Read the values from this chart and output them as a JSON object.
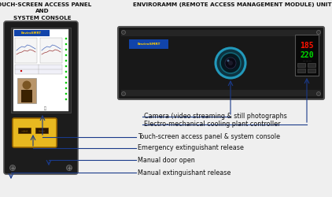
{
  "bg_color": "#efefef",
  "title_left": "TOUCH-SCREEN ACCESS PANEL\nAND\nSYSTEM CONSOLE",
  "title_right": "ENVIRORAMM (REMOTE ACCESS MANAGEMENT MODULE) UNIT",
  "labels": [
    "Camera (video streaming & still photographs",
    "Electro-mechanical cooling plant controller",
    "Touch-screen access panel & system console",
    "Emergency extinguishant release",
    "Manual door open",
    "Manual extinguishant release"
  ],
  "arrow_color": "#1a3a8a",
  "panel_bg": "#1c1c1c",
  "screen_bg": "#ffffff",
  "unit_bg": "#181818",
  "camera_ring": "#2299bb",
  "display_red": "#ff1100",
  "display_green": "#00dd00",
  "btn_yellow": "#e8b820",
  "font_size_title": 5.2,
  "font_size_label": 5.8,
  "font_color": "#111111",
  "logo_bg": "#1144aa",
  "logo_text": "#ffcc00"
}
